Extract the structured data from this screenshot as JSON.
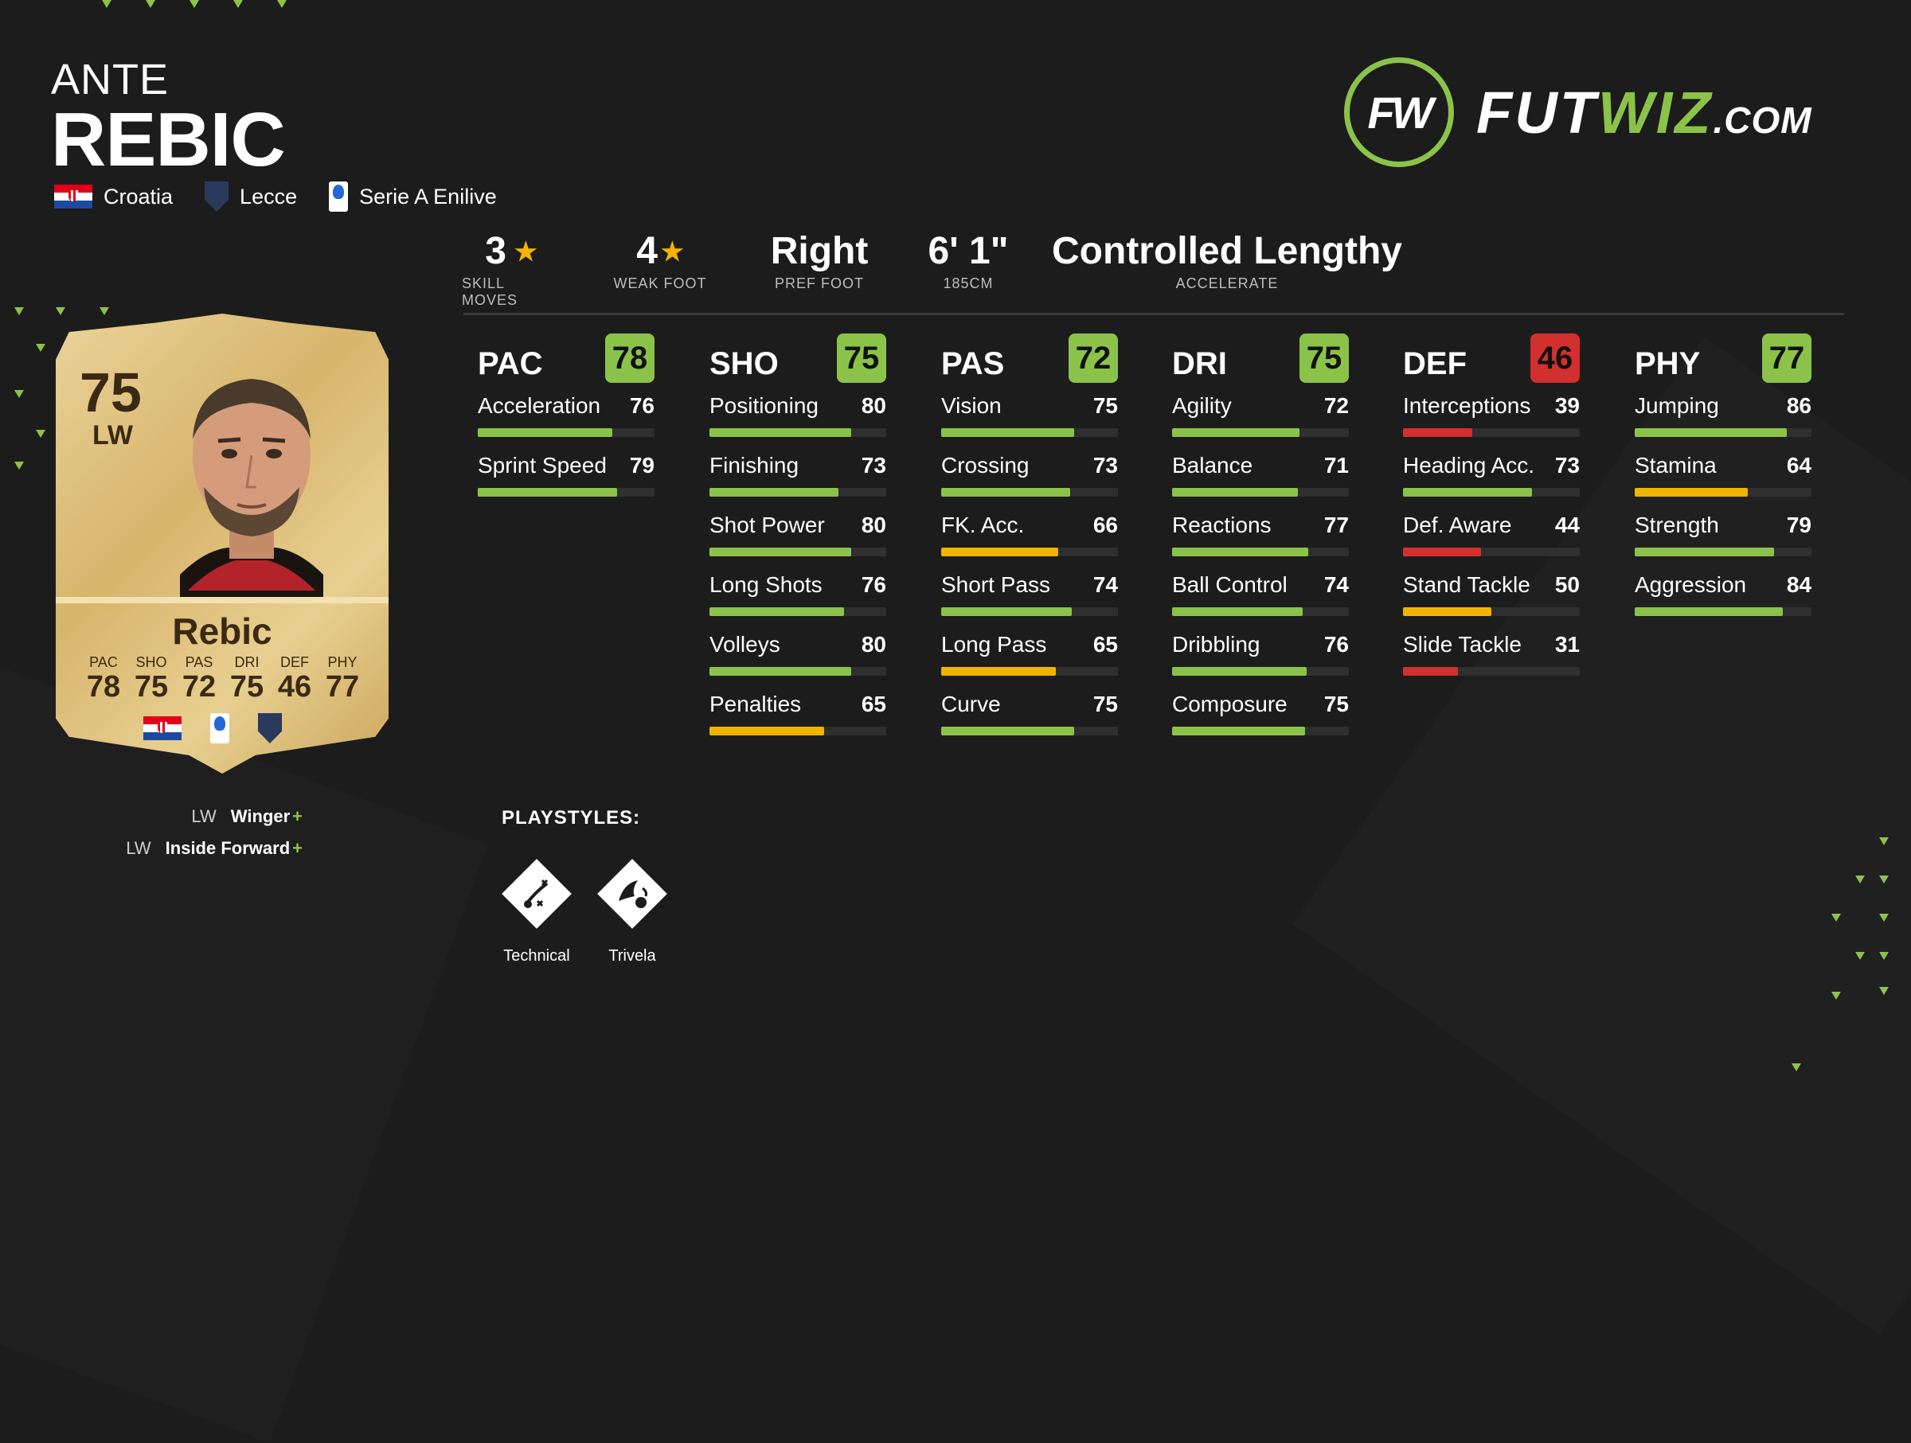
{
  "player": {
    "first_name": "ANTE",
    "last_name": "REBIC",
    "nation": "Croatia",
    "club": "Lecce",
    "league": "Serie A Enilive"
  },
  "logo": {
    "mark": "FW",
    "brand_a": "FUT",
    "brand_b": "WIZ",
    "brand_c": ".COM"
  },
  "attributes": [
    {
      "value": "3",
      "label": "SKILL MOVES",
      "star": true
    },
    {
      "value": "4",
      "label": "WEAK FOOT",
      "star": true
    },
    {
      "value": "Right",
      "label": "PREF FOOT",
      "star": false
    },
    {
      "value": "6' 1\"",
      "label": "185CM",
      "star": false
    },
    {
      "value": "Controlled Lengthy",
      "label": "ACCELERATE",
      "star": false
    }
  ],
  "colors": {
    "green": "#8bc34a",
    "yellow": "#f0b400",
    "red": "#d32f2f",
    "accent": "#8bc34a"
  },
  "stat_groups": [
    {
      "name": "PAC",
      "rating": 78,
      "stats": [
        {
          "name": "Acceleration",
          "value": 76
        },
        {
          "name": "Sprint Speed",
          "value": 79
        }
      ]
    },
    {
      "name": "SHO",
      "rating": 75,
      "stats": [
        {
          "name": "Positioning",
          "value": 80
        },
        {
          "name": "Finishing",
          "value": 73
        },
        {
          "name": "Shot Power",
          "value": 80
        },
        {
          "name": "Long Shots",
          "value": 76
        },
        {
          "name": "Volleys",
          "value": 80
        },
        {
          "name": "Penalties",
          "value": 65
        }
      ]
    },
    {
      "name": "PAS",
      "rating": 72,
      "stats": [
        {
          "name": "Vision",
          "value": 75
        },
        {
          "name": "Crossing",
          "value": 73
        },
        {
          "name": "FK. Acc.",
          "value": 66
        },
        {
          "name": "Short Pass",
          "value": 74
        },
        {
          "name": "Long Pass",
          "value": 65
        },
        {
          "name": "Curve",
          "value": 75
        }
      ]
    },
    {
      "name": "DRI",
      "rating": 75,
      "stats": [
        {
          "name": "Agility",
          "value": 72
        },
        {
          "name": "Balance",
          "value": 71
        },
        {
          "name": "Reactions",
          "value": 77
        },
        {
          "name": "Ball Control",
          "value": 74
        },
        {
          "name": "Dribbling",
          "value": 76
        },
        {
          "name": "Composure",
          "value": 75
        }
      ]
    },
    {
      "name": "DEF",
      "rating": 46,
      "stats": [
        {
          "name": "Interceptions",
          "value": 39
        },
        {
          "name": "Heading Acc.",
          "value": 73
        },
        {
          "name": "Def. Aware",
          "value": 44
        },
        {
          "name": "Stand Tackle",
          "value": 50
        },
        {
          "name": "Slide Tackle",
          "value": 31
        }
      ]
    },
    {
      "name": "PHY",
      "rating": 77,
      "stats": [
        {
          "name": "Jumping",
          "value": 86
        },
        {
          "name": "Stamina",
          "value": 64
        },
        {
          "name": "Strength",
          "value": 79
        },
        {
          "name": "Aggression",
          "value": 84
        }
      ]
    }
  ],
  "card": {
    "rating": "75",
    "position": "LW",
    "name": "Rebic",
    "stats": [
      {
        "label": "PAC",
        "value": "78"
      },
      {
        "label": "SHO",
        "value": "75"
      },
      {
        "label": "PAS",
        "value": "72"
      },
      {
        "label": "DRI",
        "value": "75"
      },
      {
        "label": "DEF",
        "value": "46"
      },
      {
        "label": "PHY",
        "value": "77"
      }
    ]
  },
  "roles": [
    {
      "pos": "LW",
      "name": "Winger",
      "plus": "+"
    },
    {
      "pos": "LW",
      "name": "Inside Forward",
      "plus": "+"
    }
  ],
  "playstyles": {
    "title": "PLAYSTYLES:",
    "items": [
      {
        "name": "Technical",
        "icon": "technical-icon"
      },
      {
        "name": "Trivela",
        "icon": "trivela-icon"
      }
    ]
  }
}
